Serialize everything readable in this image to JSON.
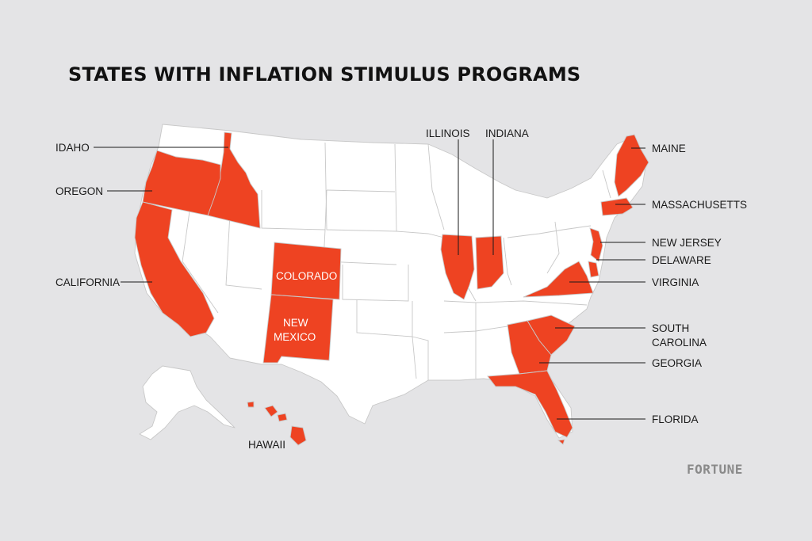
{
  "title": "STATES WITH INFLATION STIMULUS PROGRAMS",
  "colors": {
    "background": "#e4e4e6",
    "highlight": "#ee4322",
    "base_state": "#ffffff",
    "state_border": "#c8c8c8",
    "text": "#1a1a1a"
  },
  "labels": {
    "idaho": "IDAHO",
    "oregon": "OREGON",
    "california": "CALIFORNIA",
    "illinois": "ILLINOIS",
    "indiana": "INDIANA",
    "maine": "MAINE",
    "massachusetts": "MASSACHUSETTS",
    "new_jersey": "NEW JERSEY",
    "delaware": "DELAWARE",
    "virginia": "VIRGINIA",
    "south_carolina_1": "SOUTH",
    "south_carolina_2": "CAROLINA",
    "georgia": "GEORGIA",
    "florida": "FLORIDA",
    "hawaii": "HAWAII",
    "colorado": "COLORADO",
    "new_mexico_1": "NEW",
    "new_mexico_2": "MEXICO"
  },
  "highlighted_states": [
    "Idaho",
    "Oregon",
    "California",
    "Colorado",
    "New Mexico",
    "Illinois",
    "Indiana",
    "Maine",
    "Massachusetts",
    "New Jersey",
    "Delaware",
    "Virginia",
    "South Carolina",
    "Georgia",
    "Florida",
    "Hawaii"
  ],
  "brand": "FORTUNE"
}
